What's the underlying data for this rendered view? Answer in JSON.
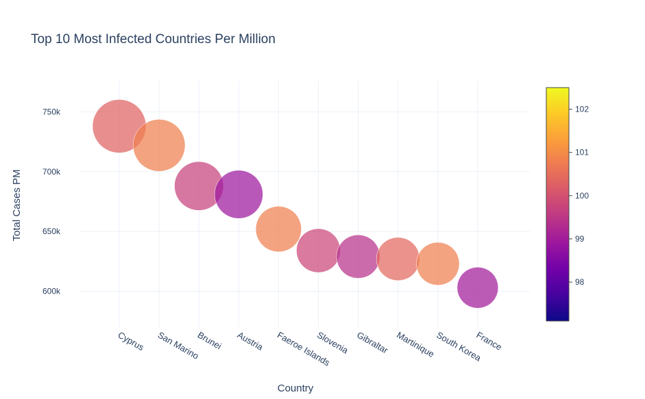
{
  "chart_data": {
    "type": "scatter",
    "title": "Top 10 Most Infected Countries Per Million",
    "xlabel": "Country",
    "ylabel": "Total Cases PM",
    "categories": [
      "Cyprus",
      "San Marino",
      "Brunei",
      "Austria",
      "Faeroe Islands",
      "Slovenia",
      "Gibraltar",
      "Martinique",
      "South Korea",
      "France"
    ],
    "y": [
      738000,
      722000,
      688000,
      681000,
      652000,
      634000,
      629000,
      627000,
      623000,
      603000
    ],
    "color_values": [
      100.3,
      100.8,
      99.7,
      98.9,
      100.8,
      99.8,
      99.4,
      100.4,
      100.8,
      99.0
    ],
    "ylim": [
      570000,
      776000
    ],
    "yticks": [
      600000,
      650000,
      700000,
      750000
    ],
    "ytick_labels": [
      "600k",
      "650k",
      "700k",
      "750k"
    ],
    "grid": true,
    "colorbar": {
      "range": [
        97.1,
        102.5
      ],
      "ticks": [
        98,
        99,
        100,
        101,
        102
      ],
      "tick_labels": [
        "98",
        "99",
        "100",
        "101",
        "102"
      ],
      "colorscale": [
        "#0d0887",
        "#46039f",
        "#7201a8",
        "#9c179e",
        "#bd3786",
        "#d8576b",
        "#ed7953",
        "#fb9f3a",
        "#fdca26",
        "#f0f921"
      ]
    }
  }
}
